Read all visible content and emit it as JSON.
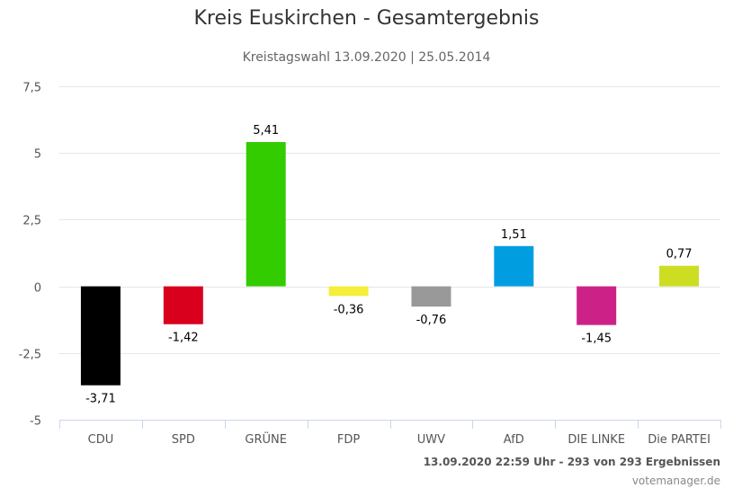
{
  "chart_data": {
    "type": "bar",
    "title": "Kreis Euskirchen - Gesamtergebnis",
    "subtitle": "Kreistagswahl 13.09.2020 | 25.05.2014",
    "categories": [
      "CDU",
      "SPD",
      "GRÜNE",
      "FDP",
      "UWV",
      "AfD",
      "DIE LINKE",
      "Die PARTEI"
    ],
    "values": [
      -3.71,
      -1.42,
      5.41,
      -0.36,
      -0.76,
      1.51,
      -1.45,
      0.77
    ],
    "value_labels": [
      "-3,71",
      "-1,42",
      "5,41",
      "-0,36",
      "-0,76",
      "1,51",
      "-1,45",
      "0,77"
    ],
    "colors": [
      "#000000",
      "#d9001e",
      "#33cc00",
      "#f5ee3b",
      "#999999",
      "#009ee0",
      "#cc2288",
      "#ccdd22"
    ],
    "ylim": [
      -5,
      7.5
    ],
    "yticks": [
      7.5,
      5,
      2.5,
      0,
      -2.5,
      -5
    ],
    "ytick_labels": [
      "7,5",
      "5",
      "2,5",
      "0",
      "-2,5",
      "-5"
    ],
    "xlabel": "",
    "ylabel": "",
    "grid": true,
    "legend": "none"
  },
  "footer": "13.09.2020 22:59 Uhr - 293 von 293 Ergebnissen",
  "credit": "votemanager.de"
}
